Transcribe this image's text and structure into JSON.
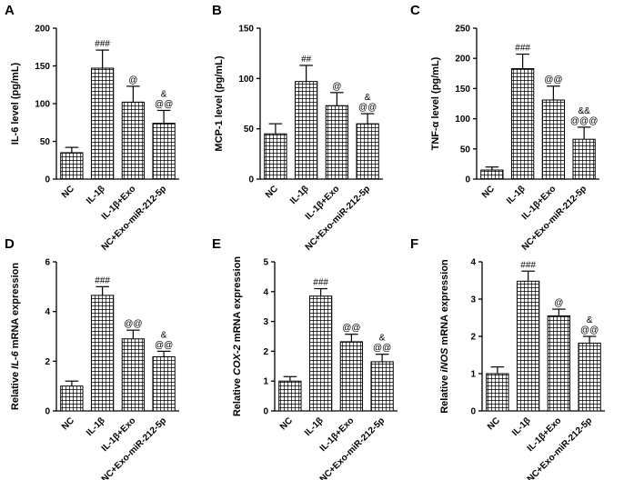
{
  "figure": {
    "categories": [
      "NC",
      "IL-1β",
      "IL-1β+Exo",
      "NC+Exo-miR-212-5p"
    ]
  },
  "chart_data": [
    {
      "type": "bar",
      "panel": "A",
      "title": "",
      "ylabel_parts": [
        {
          "text": "IL-6 level (pg/mL)",
          "italic": false
        }
      ],
      "categories": [
        "NC",
        "IL-1β",
        "IL-1β+Exo",
        "NC+Exo-miR-212-5p"
      ],
      "values": [
        35,
        147,
        102,
        74
      ],
      "errors": [
        7,
        24,
        21,
        17
      ],
      "annotations": [
        [],
        [
          "###"
        ],
        [
          "@"
        ],
        [
          "&",
          "@@"
        ]
      ],
      "ylim": [
        0,
        200
      ],
      "yticks": [
        0,
        50,
        100,
        150,
        200
      ]
    },
    {
      "type": "bar",
      "panel": "B",
      "title": "",
      "ylabel_parts": [
        {
          "text": "MCP-1 level (pg/mL)",
          "italic": false
        }
      ],
      "categories": [
        "NC",
        "IL-1β",
        "IL-1β+Exo",
        "NC+Exo-miR-212-5p"
      ],
      "values": [
        45,
        97,
        73,
        55
      ],
      "errors": [
        10,
        16,
        13,
        10
      ],
      "annotations": [
        [],
        [
          "##"
        ],
        [
          "@"
        ],
        [
          "&",
          "@@"
        ]
      ],
      "ylim": [
        0,
        150
      ],
      "yticks": [
        0,
        50,
        100,
        150
      ]
    },
    {
      "type": "bar",
      "panel": "C",
      "title": "",
      "ylabel_parts": [
        {
          "text": "TNF-α level (pg/mL)",
          "italic": false
        }
      ],
      "categories": [
        "NC",
        "IL-1β",
        "IL-1β+Exo",
        "NC+Exo-miR-212-5p"
      ],
      "values": [
        15,
        183,
        131,
        66
      ],
      "errors": [
        5,
        24,
        23,
        20
      ],
      "annotations": [
        [],
        [
          "###"
        ],
        [
          "@@"
        ],
        [
          "&&",
          "@@@"
        ]
      ],
      "ylim": [
        0,
        250
      ],
      "yticks": [
        0,
        50,
        100,
        150,
        200,
        250
      ]
    },
    {
      "type": "bar",
      "panel": "D",
      "title": "",
      "ylabel_parts": [
        {
          "text": "Relative ",
          "italic": false
        },
        {
          "text": "IL-6",
          "italic": true
        },
        {
          "text": " mRNA expression",
          "italic": false
        }
      ],
      "categories": [
        "NC",
        "IL-1β",
        "IL-1β+Exo",
        "NC+Exo-miR-212-5p"
      ],
      "values": [
        1.0,
        4.65,
        2.9,
        2.18
      ],
      "errors": [
        0.2,
        0.35,
        0.35,
        0.22
      ],
      "annotations": [
        [],
        [
          "###"
        ],
        [
          "@@"
        ],
        [
          "&",
          "@@"
        ]
      ],
      "ylim": [
        0,
        6
      ],
      "yticks": [
        0,
        2,
        4,
        6
      ]
    },
    {
      "type": "bar",
      "panel": "E",
      "title": "",
      "ylabel_parts": [
        {
          "text": "Relative ",
          "italic": false
        },
        {
          "text": "COX-2",
          "italic": true
        },
        {
          "text": " mRNA expression",
          "italic": false
        }
      ],
      "categories": [
        "NC",
        "IL-1β",
        "IL-1β+Exo",
        "NC+Exo-miR-212-5p"
      ],
      "values": [
        1.0,
        3.85,
        2.32,
        1.65
      ],
      "errors": [
        0.15,
        0.25,
        0.25,
        0.25
      ],
      "annotations": [
        [],
        [
          "###"
        ],
        [
          "@@"
        ],
        [
          "&",
          "@@"
        ]
      ],
      "ylim": [
        0,
        5
      ],
      "yticks": [
        0,
        1,
        2,
        3,
        4,
        5
      ]
    },
    {
      "type": "bar",
      "panel": "F",
      "title": "",
      "ylabel_parts": [
        {
          "text": "Relative ",
          "italic": false
        },
        {
          "text": "iNOS",
          "italic": true
        },
        {
          "text": " mRNA expression",
          "italic": false
        }
      ],
      "categories": [
        "NC",
        "IL-1β",
        "IL-1β+Exo",
        "NC+Exo-miR-212-5p"
      ],
      "values": [
        1.0,
        3.48,
        2.55,
        1.82
      ],
      "errors": [
        0.18,
        0.27,
        0.18,
        0.18
      ],
      "annotations": [
        [],
        [
          "###"
        ],
        [
          "@"
        ],
        [
          "&",
          "@@"
        ]
      ],
      "ylim": [
        0,
        4
      ],
      "yticks": [
        0,
        1,
        2,
        3,
        4
      ]
    }
  ]
}
